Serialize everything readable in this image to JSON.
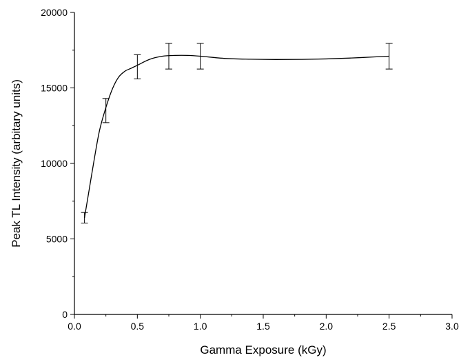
{
  "chart_data": {
    "type": "line",
    "title": "",
    "xlabel": "Gamma Exposure (kGy)",
    "ylabel": "Peak TL Intensity (arbitary units)",
    "xlim": [
      0.0,
      3.0
    ],
    "ylim": [
      0,
      20000
    ],
    "x_ticks": [
      0.0,
      0.5,
      1.0,
      1.5,
      2.0,
      2.5,
      3.0
    ],
    "x_tick_labels": [
      "0.0",
      "0.5",
      "1.0",
      "1.5",
      "2.0",
      "2.5",
      "3.0"
    ],
    "y_ticks": [
      0,
      5000,
      10000,
      15000,
      20000
    ],
    "y_tick_labels": [
      "0",
      "5000",
      "10000",
      "15000",
      "20000"
    ],
    "grid": false,
    "legend": "none",
    "series": [
      {
        "x": [
          0.08,
          0.25,
          0.5,
          0.75,
          1.0,
          2.5
        ],
        "y": [
          6400,
          13500,
          16400,
          17100,
          17100,
          17100
        ],
        "error": [
          350,
          800,
          800,
          850,
          850,
          850
        ]
      }
    ],
    "fitted_curve": {
      "x": [
        0.08,
        0.12,
        0.16,
        0.2,
        0.25,
        0.3,
        0.35,
        0.4,
        0.45,
        0.5,
        0.6,
        0.7,
        0.8,
        0.9,
        1.0,
        1.2,
        1.4,
        1.6,
        1.8,
        2.0,
        2.2,
        2.4,
        2.5
      ],
      "y": [
        6400,
        8400,
        10400,
        12200,
        13700,
        14900,
        15700,
        16100,
        16300,
        16500,
        16900,
        17100,
        17150,
        17150,
        17100,
        16950,
        16900,
        16880,
        16890,
        16920,
        16980,
        17060,
        17100
      ]
    },
    "colors": {
      "line": "#000000",
      "axis": "#000000",
      "background": "#ffffff"
    }
  }
}
